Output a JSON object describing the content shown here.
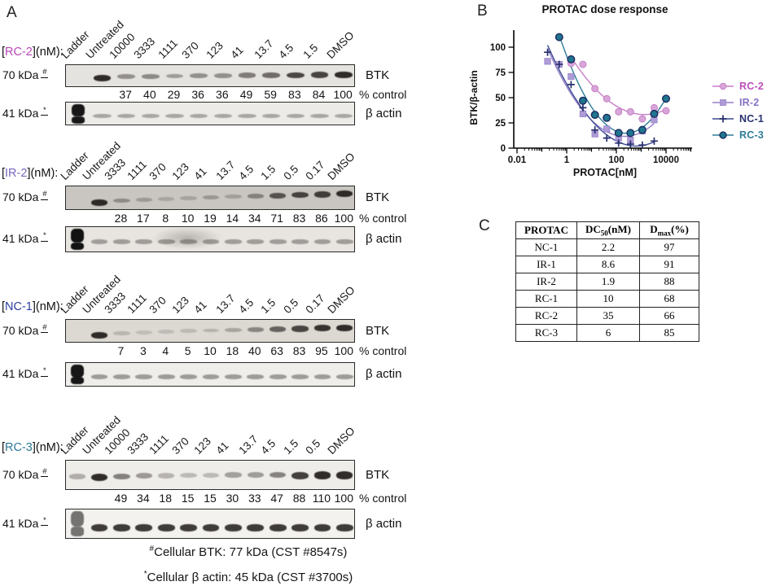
{
  "panels": {
    "a": "A",
    "b": "B",
    "c": "C"
  },
  "panel_a": {
    "sections": [
      {
        "prefix": "[",
        "name": "RC-2",
        "suffix": "](nM):",
        "name_color": "#b845b8",
        "lanes": [
          "Ladder",
          "Untreated",
          "10000",
          "3333",
          "1111",
          "370",
          "123",
          "41",
          "13.7",
          "4.5",
          "1.5",
          "DMSO"
        ],
        "percent_control": [
          "37",
          "40",
          "29",
          "36",
          "36",
          "49",
          "59",
          "83",
          "84",
          "100"
        ],
        "percent_label": "% control",
        "marker_top": {
          "text": "70 kDa",
          "symbol": "#"
        },
        "marker_bottom": {
          "text": "41 kDa",
          "symbol": "*"
        },
        "band_top_label": "BTK",
        "band_bottom_label": "β actin"
      },
      {
        "prefix": "[",
        "name": "IR-2",
        "suffix": "](nM):",
        "name_color": "#7b68bc",
        "lanes": [
          "Ladder",
          "Untreated",
          "3333",
          "1111",
          "370",
          "123",
          "41",
          "13.7",
          "4.5",
          "1.5",
          "0.5",
          "0.17",
          "DMSO"
        ],
        "percent_control": [
          "28",
          "17",
          "8",
          "10",
          "19",
          "14",
          "34",
          "71",
          "83",
          "86",
          "100"
        ],
        "percent_label": "% control",
        "marker_top": {
          "text": "70 kDa",
          "symbol": "#"
        },
        "marker_bottom": {
          "text": "41 kDa",
          "symbol": "*"
        },
        "band_top_label": "BTK",
        "band_bottom_label": "β actin"
      },
      {
        "prefix": "[",
        "name": "NC-1",
        "suffix": "](nM):",
        "name_color": "#2c3ea0",
        "lanes": [
          "Ladder",
          "Untreated",
          "3333",
          "1111",
          "370",
          "123",
          "41",
          "13.7",
          "4.5",
          "1.5",
          "0.5",
          "0.17",
          "DMSO"
        ],
        "percent_control": [
          "7",
          "3",
          "4",
          "5",
          "10",
          "18",
          "40",
          "63",
          "83",
          "95",
          "100"
        ],
        "percent_label": "% control",
        "marker_top": {
          "text": "70 kDa",
          "symbol": "#"
        },
        "marker_bottom": {
          "text": "41 kDa",
          "symbol": "*"
        },
        "band_top_label": "BTK",
        "band_bottom_label": "β actin"
      },
      {
        "prefix": "[",
        "name": "RC-3",
        "suffix": "](nM):",
        "name_color": "#2d7795",
        "lanes": [
          "Ladder",
          "Untreated",
          "10000",
          "3333",
          "1111",
          "370",
          "123",
          "41",
          "13.7",
          "4.5",
          "1.5",
          "0.5",
          "DMSO"
        ],
        "percent_control": [
          "49",
          "34",
          "18",
          "15",
          "15",
          "30",
          "33",
          "47",
          "88",
          "110",
          "100"
        ],
        "percent_label": "% control",
        "marker_top": {
          "text": "70 kDa",
          "symbol": "#"
        },
        "marker_bottom": {
          "text": "41 kDa",
          "symbol": "*"
        },
        "band_top_label": "BTK",
        "band_bottom_label": "β actin"
      }
    ],
    "footnotes": [
      {
        "symbol": "#",
        "text": "Cellular BTK: 77 kDa (CST #8547s)"
      },
      {
        "symbol": "*",
        "text": "Cellular β actin: 45 kDa (CST #3700s)"
      }
    ]
  },
  "chart_data": {
    "type": "scatter",
    "title": "PROTAC dose response",
    "xlabel": "PROTAC[nM]",
    "ylabel": "BTK/β-actin",
    "x_scale": "log",
    "xlim": [
      0.01,
      100000
    ],
    "ylim": [
      0,
      117
    ],
    "grid": false,
    "legend_position": "right",
    "xtick_labels": [
      "0.01",
      "1",
      "100",
      "10000"
    ],
    "xtick_values": [
      0.01,
      1,
      100,
      10000
    ],
    "ytick_values": [
      0,
      25,
      50,
      75,
      100
    ],
    "series": [
      {
        "name": "RC-2",
        "marker": "circle",
        "line_color": "#c77fc7",
        "fill_color": "#d8a6d8",
        "text_color": "#bb4fbb",
        "x": [
          1.5,
          4.5,
          13.7,
          41,
          123,
          370,
          1111,
          3333,
          10000
        ],
        "y": [
          84,
          83,
          59,
          49,
          36,
          36,
          29,
          40,
          37
        ]
      },
      {
        "name": "IR-2",
        "marker": "square",
        "line_color": "#9681c8",
        "fill_color": "#af9cd6",
        "text_color": "#8672c2",
        "x": [
          0.17,
          0.5,
          1.5,
          4.5,
          13.7,
          41,
          123,
          370,
          1111,
          3333
        ],
        "y": [
          86,
          83,
          71,
          34,
          14,
          19,
          10,
          8,
          17,
          28
        ]
      },
      {
        "name": "NC-1",
        "marker": "plus",
        "line_color": "#3d4a94",
        "fill_color": "#28316e",
        "text_color": "#28316e",
        "x": [
          0.17,
          0.5,
          1.5,
          4.5,
          13.7,
          41,
          123,
          370,
          1111,
          3333
        ],
        "y": [
          95,
          83,
          63,
          40,
          18,
          10,
          5,
          4,
          3,
          7
        ]
      },
      {
        "name": "RC-3",
        "marker": "circle-dark",
        "line_color": "#2e7d99",
        "fill_color": "#20758f",
        "text_color": "#2e7d99",
        "x": [
          0.5,
          1.5,
          4.5,
          13.7,
          41,
          123,
          370,
          1111,
          3333,
          10000
        ],
        "y": [
          110,
          88,
          47,
          33,
          30,
          15,
          15,
          18,
          34,
          49
        ]
      }
    ]
  },
  "panel_c": {
    "headers": [
      {
        "pre": "PROTAC",
        "sub": "",
        "post": ""
      },
      {
        "pre": "DC",
        "sub": "50",
        "post": "(nM)"
      },
      {
        "pre": "D",
        "sub": "max",
        "post": "(%)"
      }
    ],
    "rows": [
      [
        "NC-1",
        "2.2",
        "97"
      ],
      [
        "IR-1",
        "8.6",
        "91"
      ],
      [
        "IR-2",
        "1.9",
        "88"
      ],
      [
        "RC-1",
        "10",
        "68"
      ],
      [
        "RC-2",
        "35",
        "66"
      ],
      [
        "RC-3",
        "6",
        "85"
      ]
    ]
  }
}
